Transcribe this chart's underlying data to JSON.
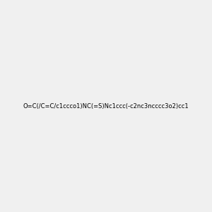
{
  "smiles": "O=C(/C=C/c1ccco1)NC(=S)Nc1ccc(-c2nc3ncccc3o2)cc1",
  "image_size": 300,
  "background_color": "#f0f0f0",
  "bond_color": "#000000",
  "atom_colors": {
    "N": "#0000ff",
    "O": "#ff0000",
    "S": "#cccc00",
    "C": "#000000",
    "H": "#4a9090"
  }
}
